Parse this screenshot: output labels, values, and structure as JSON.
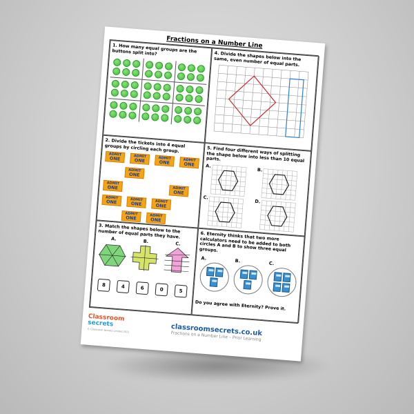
{
  "title": "Fractions on a Number Line",
  "q1": {
    "text": "1. How many equal groups are the buttons split into?"
  },
  "q2": {
    "text": "2. Divide the tickets into 4 equal groups by circling each group.",
    "ticket_top": "ADMIT",
    "ticket_bottom": "ONE"
  },
  "q3": {
    "text": "3. Match the shapes below to the number of equal parts they have.",
    "labels": [
      "A.",
      "B.",
      "C."
    ],
    "cards": [
      "8",
      "4",
      "6",
      "0",
      "5"
    ]
  },
  "q4": {
    "text": "4. Divide the shapes below into the same, even number of equal parts."
  },
  "q5": {
    "text": "5. Find four different ways of splitting the shape below into less than 10 equal parts.",
    "labels": [
      "A.",
      "B.",
      "C.",
      "D."
    ]
  },
  "q6": {
    "text": "6. Eternity thinks that two more calculators need to be added to both circles A and B to show three equal groups.",
    "labels": [
      "A.",
      "B.",
      "C."
    ],
    "question": "Do you agree with Eternity? Prove it."
  },
  "footer": {
    "logo_line1": "Classroom",
    "logo_line2": "secrets",
    "copyright": "© Classroom Secrets Limited 2021",
    "url": "classroomsecrets.co.uk",
    "subtitle": "Fractions on a Number Line – Prior Learning"
  },
  "colors": {
    "button_green": "#3cbf3a",
    "ticket_orange": "#f2a516",
    "diamond_red": "#d0262b",
    "rect_blue": "#2a7fd0",
    "url_blue": "#1b5aa8"
  }
}
